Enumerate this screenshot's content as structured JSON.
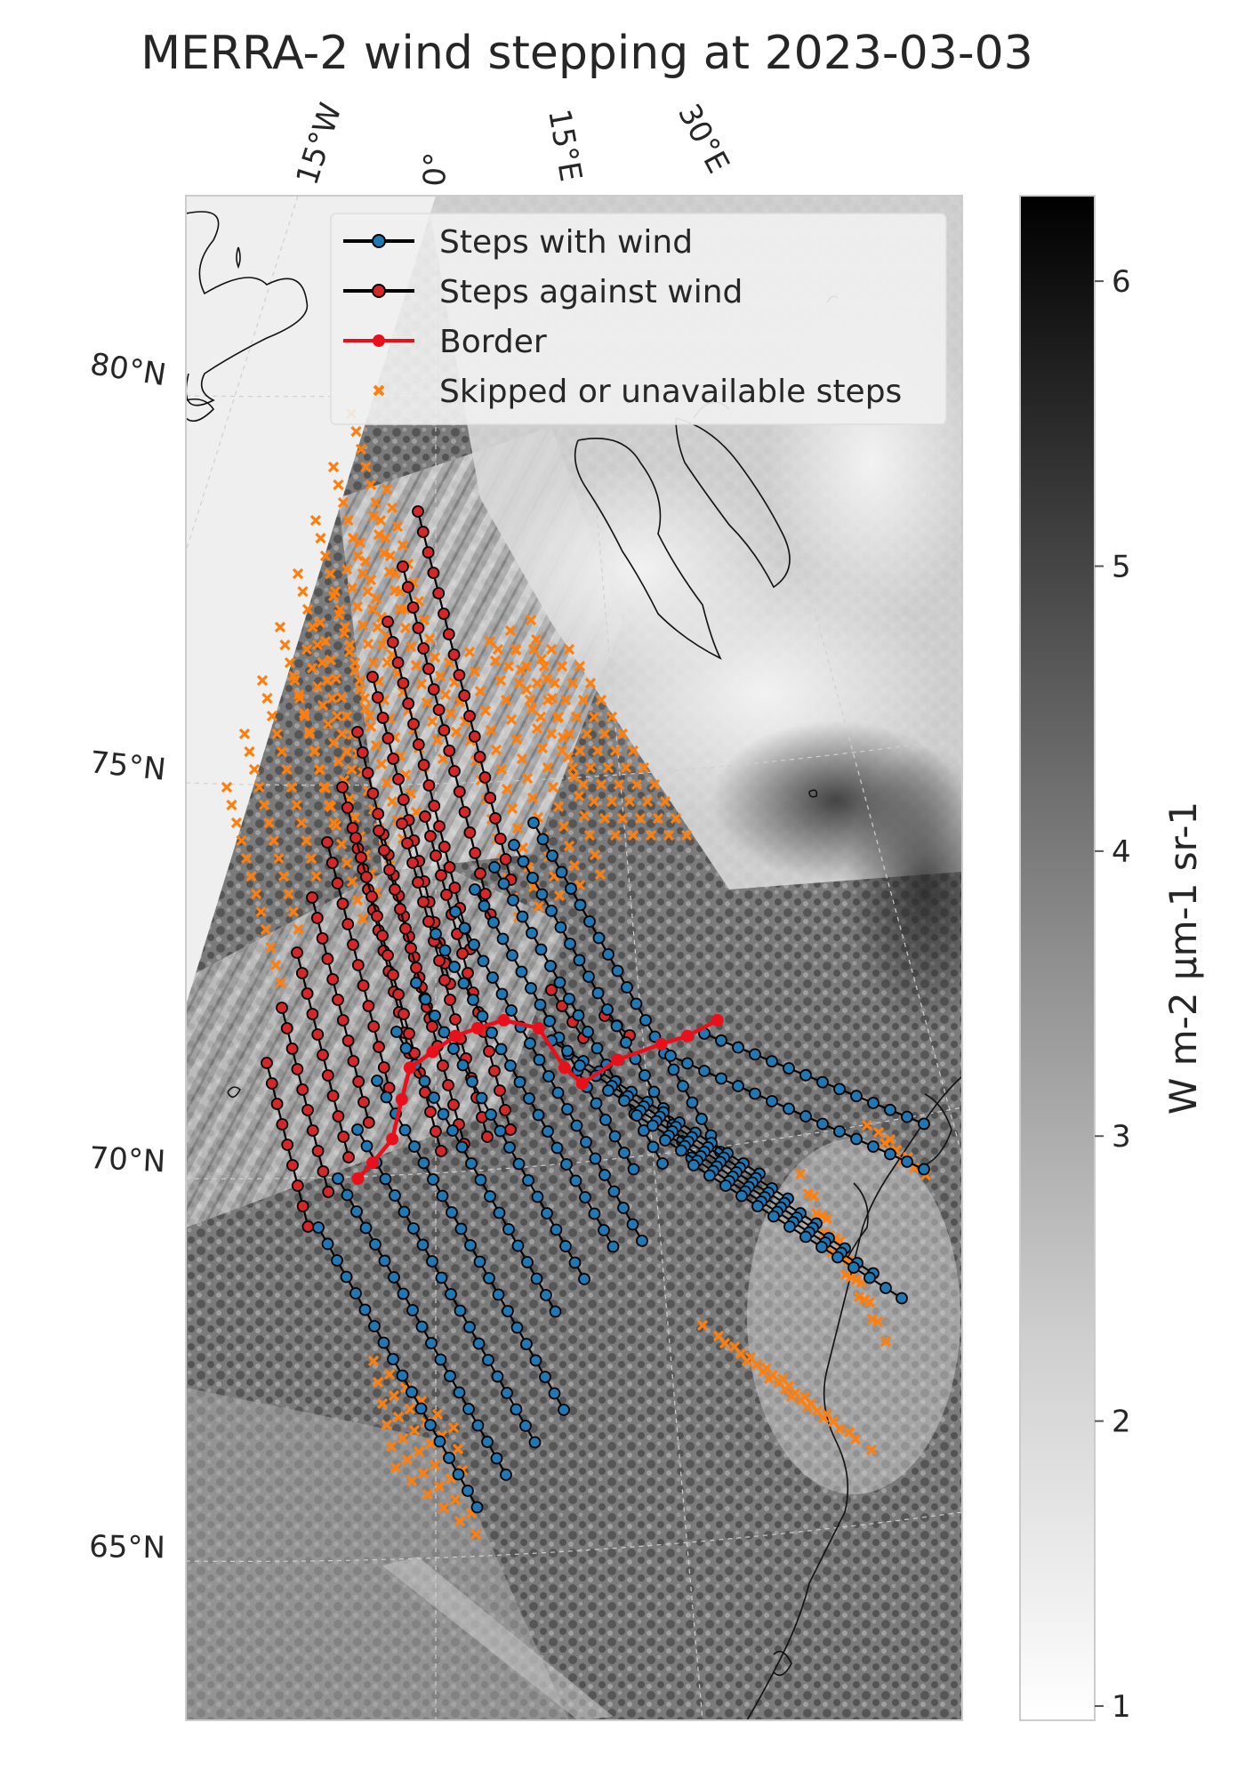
{
  "title": "MERRA-2 wind stepping at 2023-03-03",
  "map": {
    "lon_ticks": [
      "15°W",
      "0°",
      "15°E",
      "30°E"
    ],
    "lat_ticks": [
      "80°N",
      "75°N",
      "70°N",
      "65°N"
    ]
  },
  "legend": {
    "placement": "top-right",
    "entries": [
      {
        "label": "Steps with wind",
        "color": "#1f77b4",
        "marker": "circle-black-edge"
      },
      {
        "label": "Steps against wind",
        "color": "#d62728",
        "marker": "circle-black-edge"
      },
      {
        "label": "Border",
        "color": "#e8101a",
        "marker": "red-line-dot"
      },
      {
        "label": "Skipped or unavailable steps",
        "color": "#ff7f0e",
        "marker": "x"
      }
    ]
  },
  "colorbar": {
    "label": "W m-2 μm-1 sr-1",
    "ticks": [
      "1",
      "2",
      "3",
      "4",
      "5",
      "6"
    ],
    "range": [
      0.95,
      6.3
    ],
    "colormap": "gray_r"
  },
  "chart_data": {
    "type": "scatter",
    "title": "MERRA-2 wind stepping at 2023-03-03",
    "colorbar_label": "W m-2 μm-1 sr-1",
    "colorbar_ticks": [
      1,
      2,
      3,
      4,
      5,
      6
    ],
    "grid": true,
    "border": {
      "name": "Border",
      "lon": [
        -8.5,
        -7,
        -5,
        -4.2,
        -3.5,
        -1,
        1.5,
        4,
        7,
        11,
        14,
        16,
        20,
        25,
        28,
        31.5
      ],
      "lat": [
        70.0,
        70.2,
        70.5,
        71.0,
        71.4,
        71.6,
        71.8,
        71.9,
        72.0,
        71.9,
        71.4,
        71.2,
        71.5,
        71.7,
        71.8,
        72.0
      ]
    },
    "series": [
      {
        "name": "Steps with wind",
        "color": "#1f77b4"
      },
      {
        "name": "Steps against wind",
        "color": "#d62728"
      },
      {
        "name": "Skipped or unavailable steps",
        "color": "#ff7f0e"
      }
    ]
  }
}
